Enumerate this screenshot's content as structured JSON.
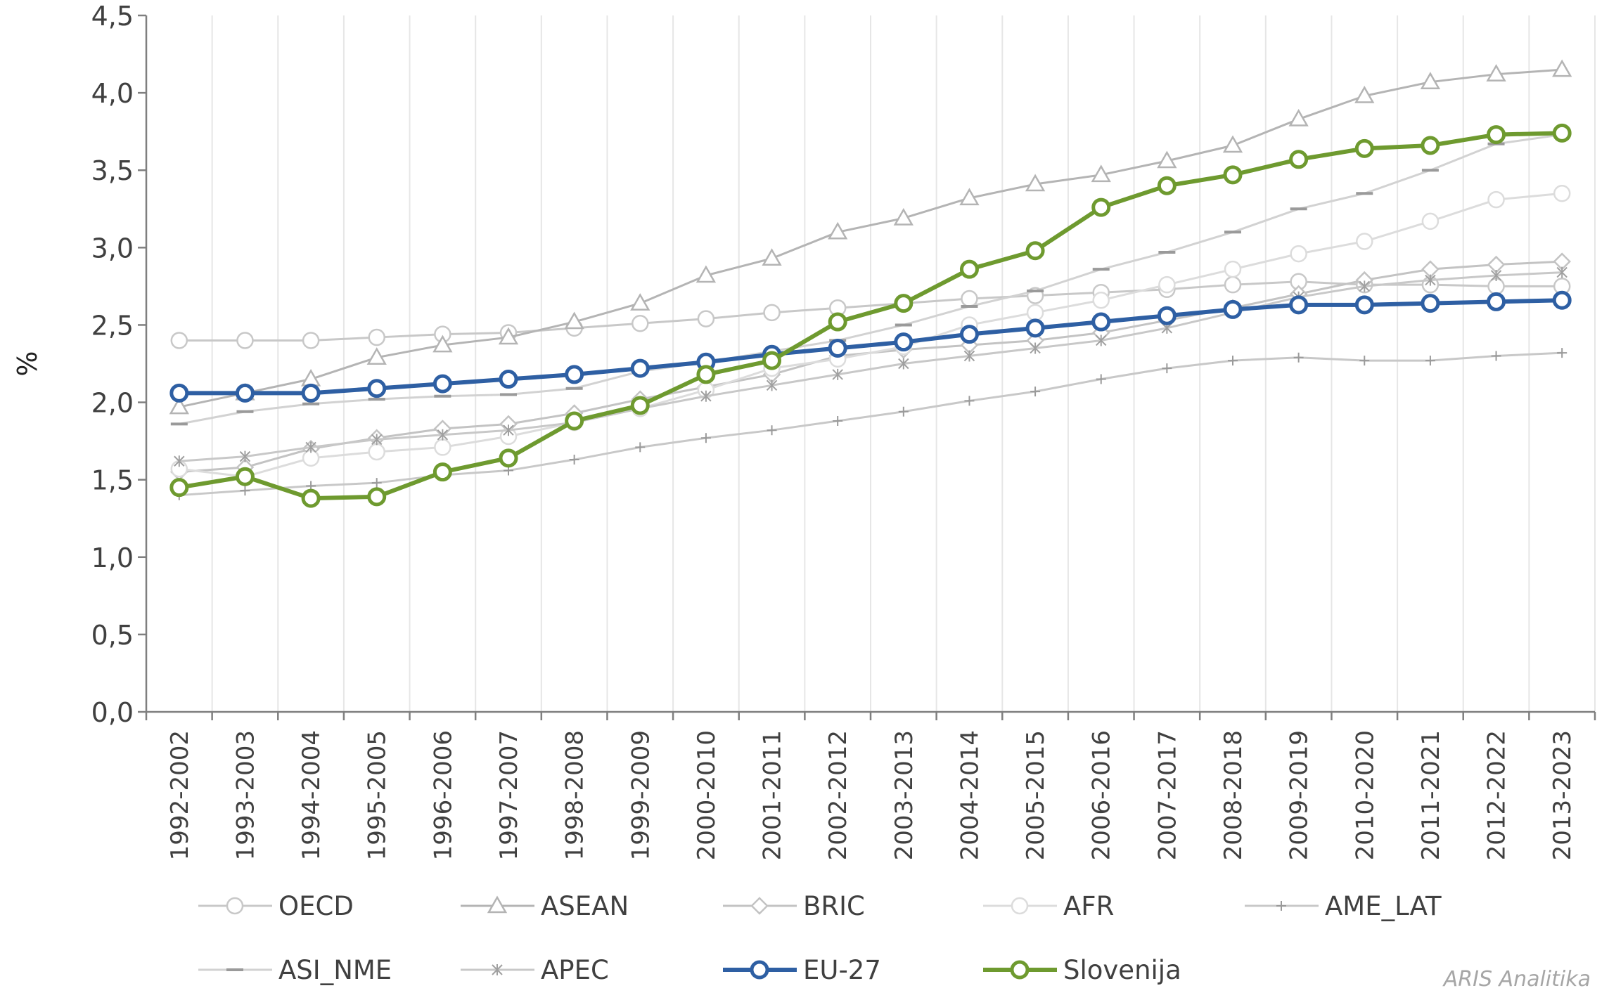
{
  "chart_data": {
    "type": "line",
    "ylabel": "%",
    "ylim": [
      0,
      4.5
    ],
    "ytick_labels": [
      "0,0",
      "0,5",
      "1,0",
      "1,5",
      "2,0",
      "2,5",
      "3,0",
      "3,5",
      "4,0",
      "4,5"
    ],
    "grid": "vertical",
    "legend_position": "bottom",
    "categories": [
      "1992-2002",
      "1993-2003",
      "1994-2004",
      "1995-2005",
      "1996-2006",
      "1997-2007",
      "1998-2008",
      "1999-2009",
      "2000-2010",
      "2001-2011",
      "2002-2012",
      "2003-2013",
      "2004-2014",
      "2005-2015",
      "2006-2016",
      "2007-2017",
      "2008-2018",
      "2009-2019",
      "2010-2020",
      "2011-2021",
      "2012-2022",
      "2013-2023"
    ],
    "series": [
      {
        "name": "OECD",
        "marker": "circle",
        "color": "#c8c8c8",
        "values": [
          2.4,
          2.4,
          2.4,
          2.42,
          2.44,
          2.45,
          2.48,
          2.51,
          2.54,
          2.58,
          2.61,
          2.64,
          2.67,
          2.69,
          2.71,
          2.73,
          2.76,
          2.78,
          2.76,
          2.76,
          2.75,
          2.75
        ]
      },
      {
        "name": "ASEAN",
        "marker": "triangle",
        "color": "#b4b4b4",
        "values": [
          1.97,
          2.06,
          2.15,
          2.29,
          2.37,
          2.42,
          2.52,
          2.64,
          2.82,
          2.93,
          3.1,
          3.19,
          3.32,
          3.41,
          3.47,
          3.56,
          3.66,
          3.83,
          3.98,
          4.07,
          4.12,
          4.15
        ]
      },
      {
        "name": "BRIC",
        "marker": "diamond",
        "color": "#c3c3c3",
        "values": [
          1.55,
          1.58,
          1.7,
          1.77,
          1.83,
          1.86,
          1.93,
          2.02,
          2.1,
          2.18,
          2.3,
          2.34,
          2.37,
          2.4,
          2.45,
          2.53,
          2.61,
          2.7,
          2.79,
          2.86,
          2.89,
          2.91
        ]
      },
      {
        "name": "AFR",
        "marker": "circle",
        "color": "#dcdcdc",
        "values": [
          1.57,
          1.52,
          1.64,
          1.68,
          1.71,
          1.78,
          1.87,
          1.96,
          2.08,
          2.22,
          2.28,
          2.36,
          2.5,
          2.58,
          2.66,
          2.76,
          2.86,
          2.96,
          3.04,
          3.17,
          3.31,
          3.35
        ]
      },
      {
        "name": "AME_LAT",
        "marker": "plus",
        "color": "#c8c8c8",
        "values": [
          1.4,
          1.43,
          1.46,
          1.48,
          1.53,
          1.56,
          1.63,
          1.71,
          1.77,
          1.82,
          1.88,
          1.94,
          2.01,
          2.07,
          2.15,
          2.22,
          2.27,
          2.29,
          2.27,
          2.27,
          2.3,
          2.32
        ]
      },
      {
        "name": "ASI_NME",
        "marker": "dash",
        "color": "#d2d2d2",
        "values": [
          1.86,
          1.94,
          1.99,
          2.02,
          2.04,
          2.05,
          2.09,
          2.2,
          2.26,
          2.33,
          2.4,
          2.5,
          2.62,
          2.72,
          2.86,
          2.97,
          3.1,
          3.25,
          3.35,
          3.5,
          3.67,
          3.73
        ]
      },
      {
        "name": "APEC",
        "marker": "asterisk",
        "color": "#c8c8c8",
        "values": [
          1.62,
          1.65,
          1.71,
          1.76,
          1.79,
          1.82,
          1.87,
          1.96,
          2.04,
          2.11,
          2.18,
          2.25,
          2.3,
          2.35,
          2.4,
          2.48,
          2.58,
          2.68,
          2.75,
          2.79,
          2.82,
          2.84
        ]
      },
      {
        "name": "EU-27",
        "marker": "circle",
        "color": "#2e5fa3",
        "values": [
          2.06,
          2.06,
          2.06,
          2.09,
          2.12,
          2.15,
          2.18,
          2.22,
          2.26,
          2.31,
          2.35,
          2.39,
          2.44,
          2.48,
          2.52,
          2.56,
          2.6,
          2.63,
          2.63,
          2.64,
          2.65,
          2.66
        ]
      },
      {
        "name": "Slovenija",
        "marker": "circle",
        "color": "#6e9a2f",
        "values": [
          1.45,
          1.52,
          1.38,
          1.39,
          1.55,
          1.64,
          1.88,
          1.98,
          2.18,
          2.27,
          2.52,
          2.64,
          2.86,
          2.98,
          3.26,
          3.4,
          3.47,
          3.57,
          3.64,
          3.66,
          3.73,
          3.74
        ]
      }
    ]
  },
  "watermark": "ARIS Analitika"
}
